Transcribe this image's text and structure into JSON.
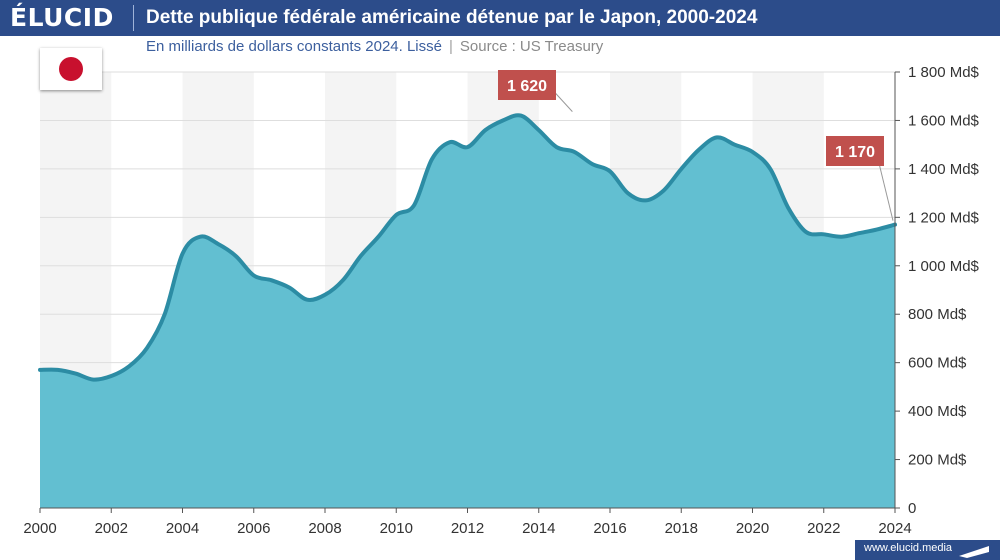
{
  "header": {
    "logo": "ÉLUCID",
    "title": "Dette publique fédérale américaine détenue par le Japon, 2000-2024",
    "subtitle": "En milliards de dollars constants 2024. Lissé",
    "separator": "|",
    "source": "Source : US Treasury"
  },
  "flag": {
    "icon": "japan-flag-icon",
    "field_color": "#ffffff",
    "disc_color": "#c8102e"
  },
  "footer": {
    "url": "www.elucid.media",
    "icon": "elucid-mark-icon"
  },
  "colors": {
    "header": "#2c4c8a",
    "area_fill": "#62bfd1",
    "area_line": "#2c8ca4",
    "annotation": "#c0504d",
    "band": "#f4f4f4"
  },
  "chart_data": {
    "type": "area",
    "title": "Dette publique fédérale américaine détenue par le Japon, 2000-2024",
    "ylabel": "",
    "xlabel": "",
    "xlim": [
      2000,
      2024
    ],
    "ylim": [
      0,
      1800
    ],
    "x_ticks": [
      2000,
      2002,
      2004,
      2006,
      2008,
      2010,
      2012,
      2014,
      2016,
      2018,
      2020,
      2022,
      2024
    ],
    "x_tick_labels": [
      "2000",
      "2002",
      "2004",
      "2006",
      "2008",
      "2010",
      "2012",
      "2014",
      "2016",
      "2018",
      "2020",
      "2022",
      "2024"
    ],
    "y_ticks": [
      0,
      200,
      400,
      600,
      800,
      1000,
      1200,
      1400,
      1600,
      1800
    ],
    "y_tick_labels": [
      "0",
      "200 Md$",
      "400 Md$",
      "600 Md$",
      "800 Md$",
      "1 000 Md$",
      "1 200 Md$",
      "1 400 Md$",
      "1 600 Md$",
      "1 800 Md$"
    ],
    "grid": true,
    "alternating_bands": true,
    "series": [
      {
        "x": [
          2000,
          2000.5,
          2001,
          2001.5,
          2002,
          2002.5,
          2003,
          2003.5,
          2004,
          2004.5,
          2005,
          2005.5,
          2006,
          2006.5,
          2007,
          2007.5,
          2008,
          2008.5,
          2009,
          2009.5,
          2010,
          2010.5,
          2011,
          2011.5,
          2012,
          2012.5,
          2013,
          2013.5,
          2014,
          2014.5,
          2015,
          2015.5,
          2016,
          2016.5,
          2017,
          2017.5,
          2018,
          2018.5,
          2019,
          2019.5,
          2020,
          2020.5,
          2021,
          2021.5,
          2022,
          2022.5,
          2023,
          2023.5,
          2024
        ],
        "values": [
          570,
          570,
          555,
          530,
          545,
          585,
          660,
          800,
          1050,
          1120,
          1090,
          1040,
          960,
          940,
          910,
          860,
          880,
          940,
          1040,
          1120,
          1210,
          1250,
          1440,
          1510,
          1490,
          1560,
          1600,
          1620,
          1560,
          1490,
          1470,
          1420,
          1390,
          1300,
          1270,
          1310,
          1400,
          1480,
          1530,
          1500,
          1470,
          1400,
          1240,
          1140,
          1130,
          1120,
          1135,
          1150,
          1170
        ]
      }
    ],
    "annotations": [
      {
        "x": 2015,
        "y": 1620,
        "label": "1 620"
      },
      {
        "x": 2024,
        "y": 1170,
        "label": "1 170"
      }
    ]
  }
}
